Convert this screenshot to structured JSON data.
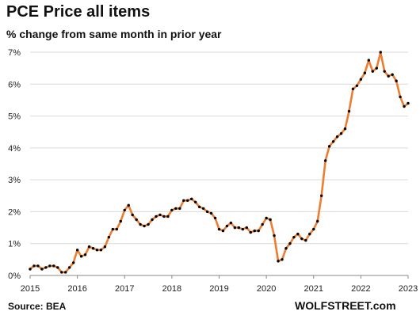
{
  "title": "PCE Price all items",
  "subtitle": "% change from same month in prior year",
  "source": "Source: BEA",
  "brand": "WOLFSTREET.com",
  "colors": {
    "line": "#ed7d31",
    "marker": "#000000",
    "grid": "#d9d9d9"
  },
  "chart_data": {
    "type": "line",
    "title": "PCE Price all items",
    "subtitle": "% change from same month in prior year",
    "xlabel": "",
    "ylabel": "",
    "xlim": [
      2015,
      2023
    ],
    "ylim": [
      0,
      7
    ],
    "x_ticks": [
      2015,
      2016,
      2017,
      2018,
      2019,
      2020,
      2021,
      2022,
      2023
    ],
    "y_ticks": [
      0,
      1,
      2,
      3,
      4,
      5,
      6,
      7
    ],
    "y_tick_labels": [
      "0%",
      "1%",
      "2%",
      "3%",
      "4%",
      "5%",
      "6%",
      "7%"
    ],
    "grid": "horizontal",
    "series": [
      {
        "x_start": "2015-01",
        "x_step": "month",
        "values": [
          0.2,
          0.3,
          0.3,
          0.2,
          0.25,
          0.3,
          0.3,
          0.25,
          0.1,
          0.1,
          0.25,
          0.4,
          0.8,
          0.6,
          0.65,
          0.9,
          0.85,
          0.8,
          0.8,
          0.9,
          1.2,
          1.45,
          1.45,
          1.7,
          2.05,
          2.2,
          1.9,
          1.75,
          1.6,
          1.55,
          1.6,
          1.75,
          1.85,
          1.9,
          1.85,
          1.85,
          2.05,
          2.1,
          2.1,
          2.35,
          2.35,
          2.4,
          2.3,
          2.15,
          2.1,
          2.0,
          1.95,
          1.8,
          1.45,
          1.4,
          1.55,
          1.65,
          1.5,
          1.5,
          1.45,
          1.5,
          1.35,
          1.4,
          1.4,
          1.6,
          1.8,
          1.75,
          1.25,
          0.45,
          0.5,
          0.85,
          1.0,
          1.2,
          1.3,
          1.15,
          1.1,
          1.3,
          1.45,
          1.7,
          2.5,
          3.6,
          4.05,
          4.2,
          4.35,
          4.45,
          4.6,
          5.15,
          5.85,
          5.95,
          6.15,
          6.35,
          6.75,
          6.4,
          6.5,
          7.0,
          6.4,
          6.25,
          6.3,
          6.1,
          5.6,
          5.3,
          5.4
        ]
      }
    ]
  }
}
